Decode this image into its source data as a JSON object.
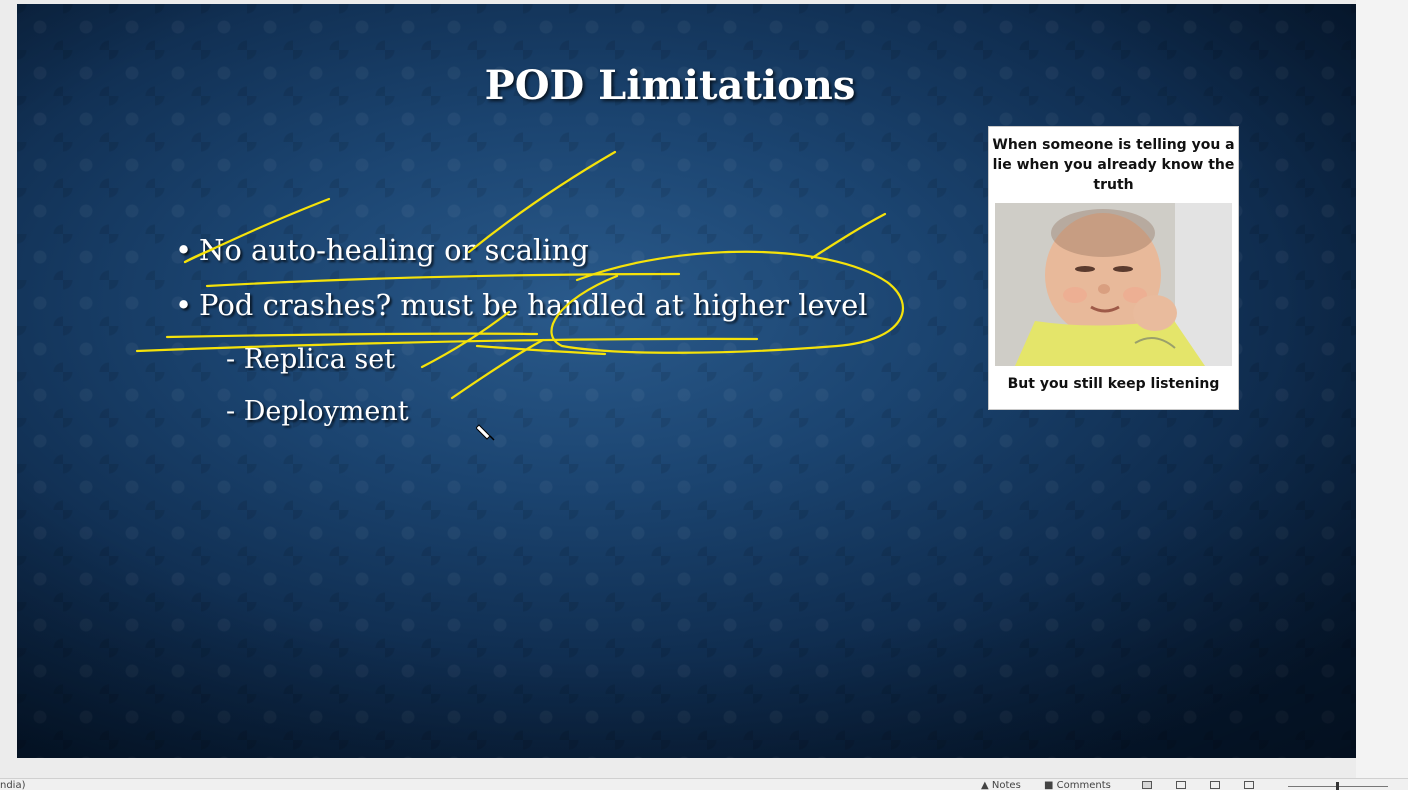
{
  "slide": {
    "title": "POD Limitations",
    "bullets": [
      "No auto-healing or scaling",
      "Pod crashes? must be handled at higher level"
    ],
    "bullet_marker": "•",
    "sub_items": [
      "- Replica set",
      "- Deployment"
    ]
  },
  "meme": {
    "top_text": "When someone is telling you a lie when you already know the truth",
    "bottom_text": "But you still keep listening"
  },
  "annotation": {
    "ink_color": "#f5e20a"
  },
  "statusbar": {
    "language": "ndia)",
    "notes_label": "Notes",
    "comments_label": "Comments"
  }
}
